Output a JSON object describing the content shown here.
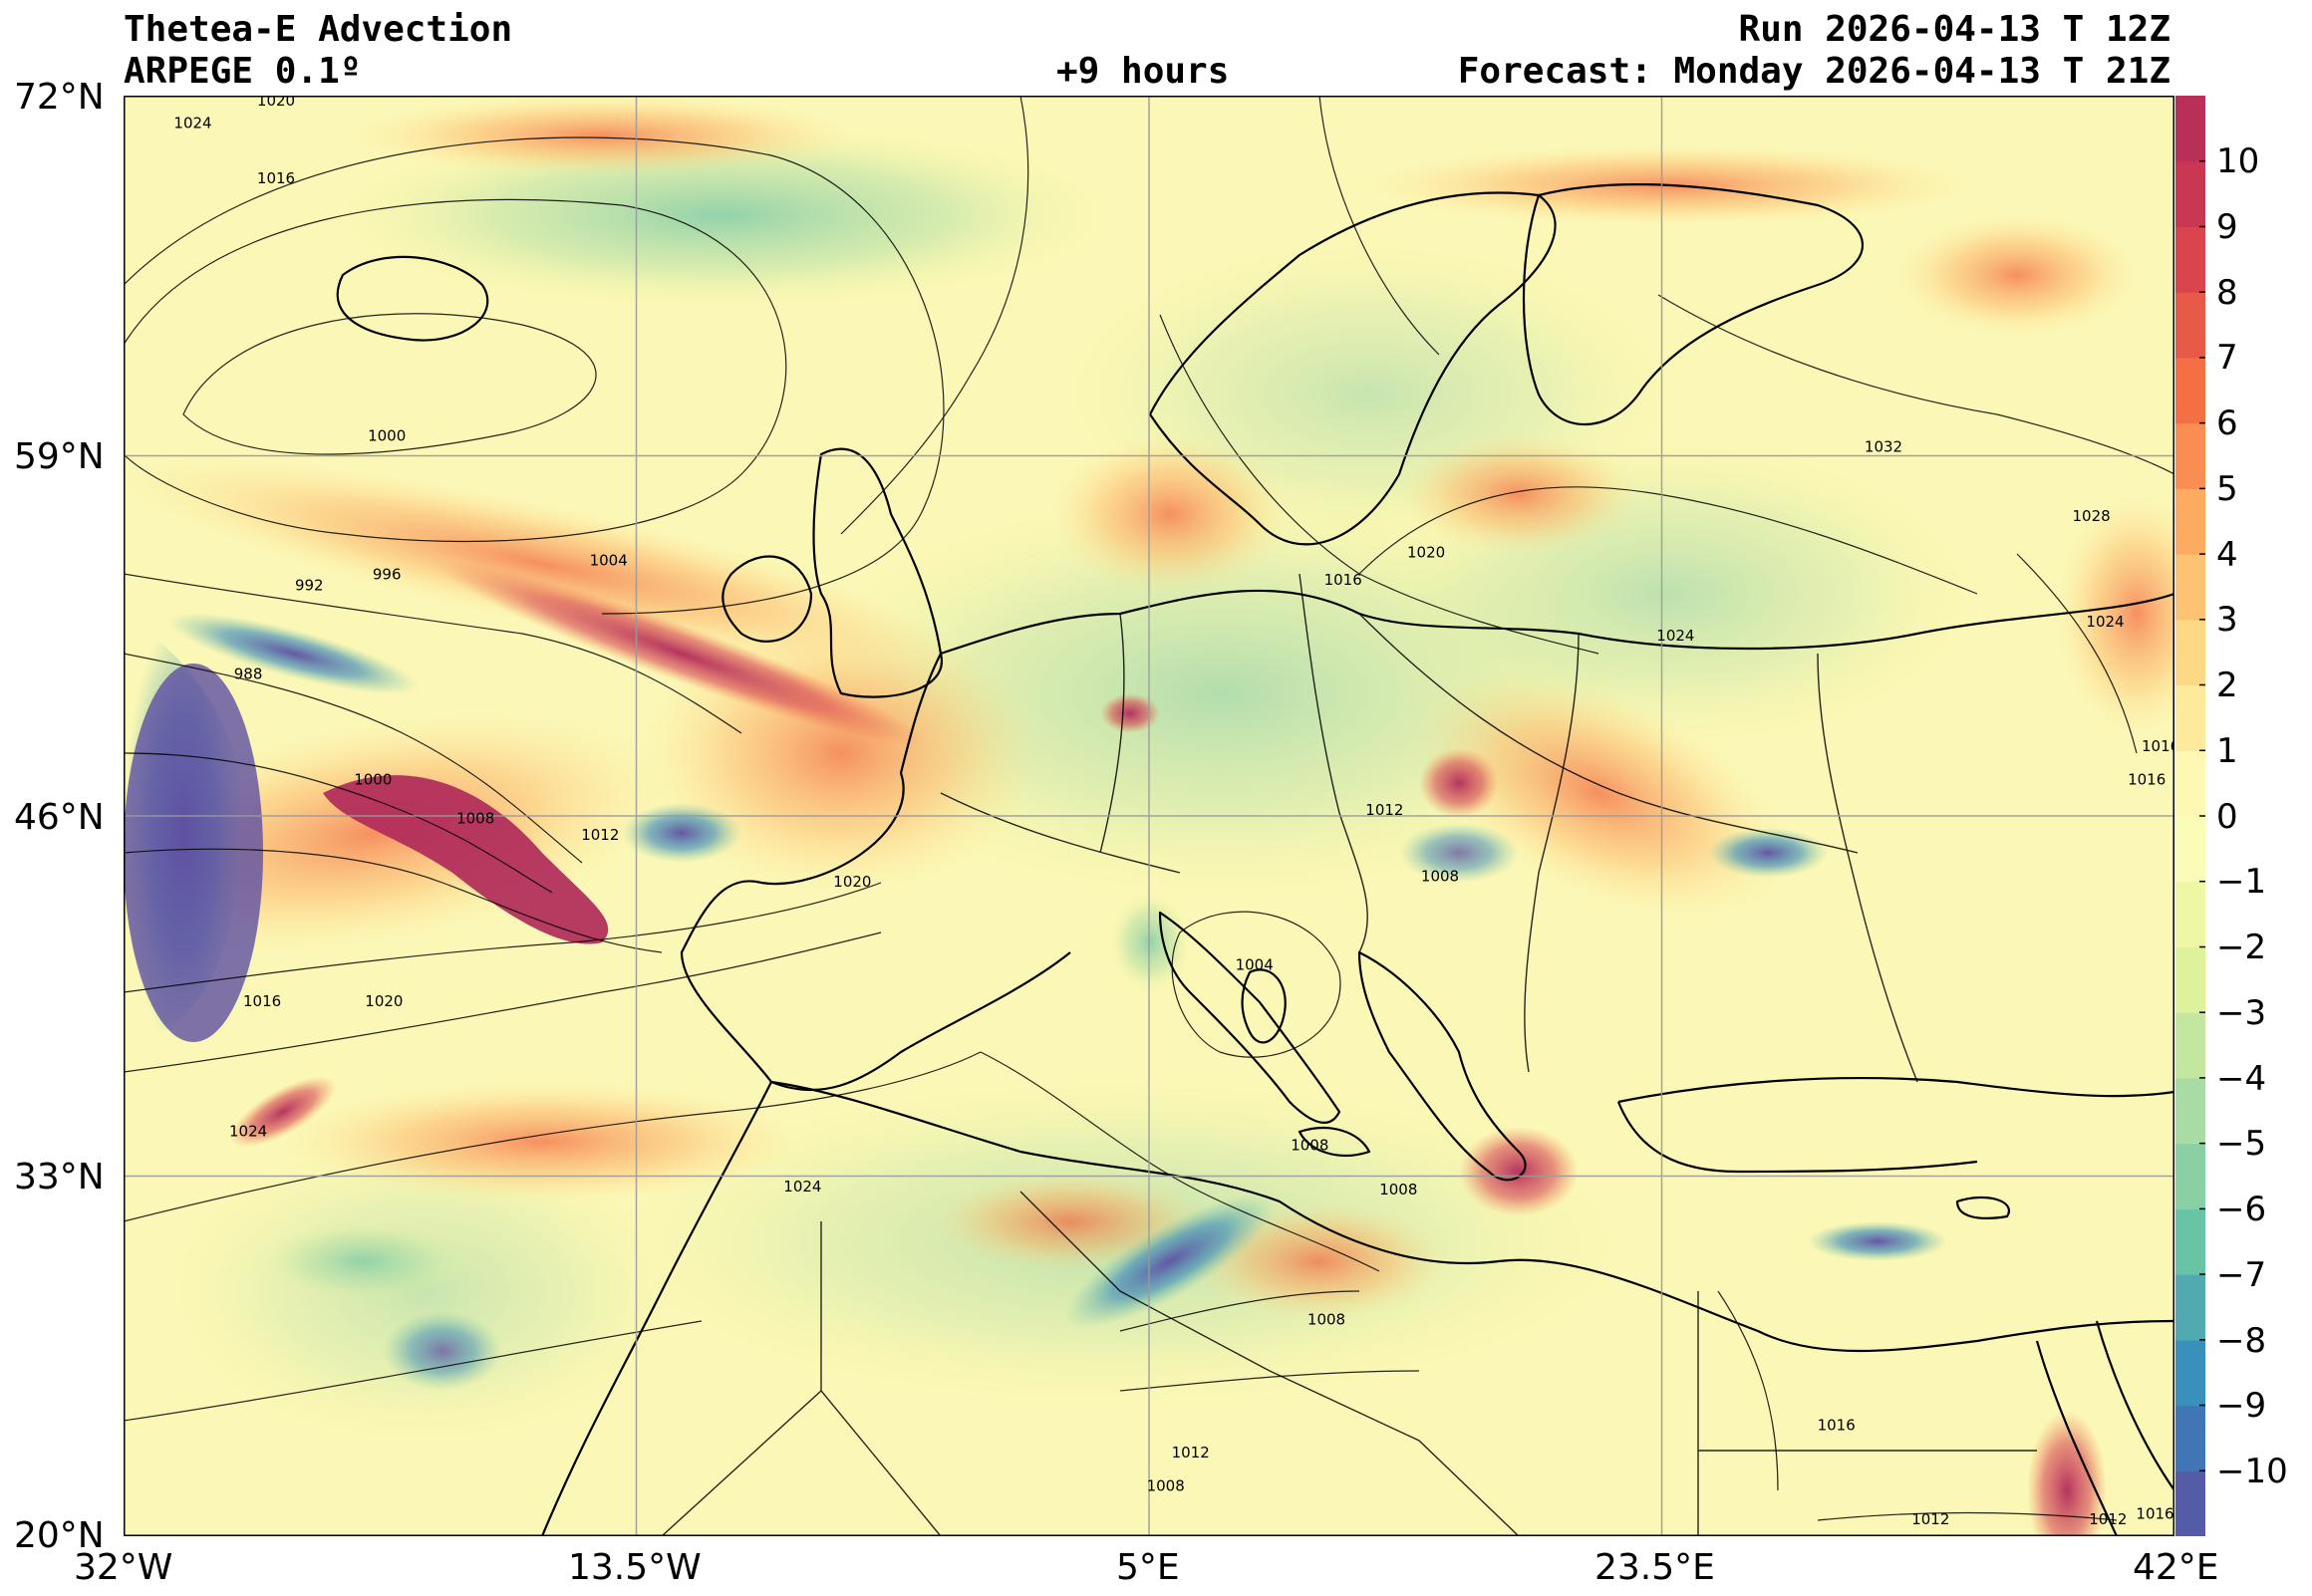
{
  "header": {
    "title": "Thetea-E Advection",
    "model": "ARPEGE 0.1º",
    "lead": "+9 hours",
    "run": "Run 2026-04-13 T 12Z",
    "forecast": "Forecast: Monday 2026-04-13 T 21Z"
  },
  "map": {
    "lon_range": [
      -32,
      42
    ],
    "lat_range": [
      20,
      72
    ],
    "lat_labels": [
      "72°N",
      "59°N",
      "46°N",
      "33°N",
      "20°N"
    ],
    "lon_labels": [
      "32°W",
      "13.5°W",
      "5°E",
      "23.5°E",
      "42°E"
    ],
    "isobar_labels": [
      {
        "text": "1024",
        "lon": -29.5,
        "lat": 71.0
      },
      {
        "text": "1020",
        "lon": -26.5,
        "lat": 71.8
      },
      {
        "text": "1016",
        "lon": -26.5,
        "lat": 69.0
      },
      {
        "text": "1000",
        "lon": -22.5,
        "lat": 59.7
      },
      {
        "text": "1004",
        "lon": -14.5,
        "lat": 55.2
      },
      {
        "text": "996",
        "lon": -22.5,
        "lat": 54.7
      },
      {
        "text": "992",
        "lon": -25.3,
        "lat": 54.3
      },
      {
        "text": "988",
        "lon": -27.5,
        "lat": 51.1
      },
      {
        "text": "1000",
        "lon": -23.0,
        "lat": 47.3
      },
      {
        "text": "1008",
        "lon": -19.3,
        "lat": 45.9
      },
      {
        "text": "1012",
        "lon": -14.8,
        "lat": 45.3
      },
      {
        "text": "1020",
        "lon": -5.7,
        "lat": 43.6
      },
      {
        "text": "1016",
        "lon": -27.0,
        "lat": 39.3
      },
      {
        "text": "1020",
        "lon": -22.6,
        "lat": 39.3
      },
      {
        "text": "1024",
        "lon": -27.5,
        "lat": 34.6
      },
      {
        "text": "1024",
        "lon": -7.5,
        "lat": 32.6
      },
      {
        "text": "1008",
        "lon": 10.8,
        "lat": 34.1
      },
      {
        "text": "1008",
        "lon": 14.0,
        "lat": 32.5
      },
      {
        "text": "1008",
        "lon": 11.4,
        "lat": 27.8
      },
      {
        "text": "1012",
        "lon": 6.5,
        "lat": 23.0
      },
      {
        "text": "1008",
        "lon": 5.6,
        "lat": 21.8
      },
      {
        "text": "1004",
        "lon": 8.8,
        "lat": 40.6
      },
      {
        "text": "1008",
        "lon": 15.5,
        "lat": 43.8
      },
      {
        "text": "1012",
        "lon": 13.5,
        "lat": 46.2
      },
      {
        "text": "1016",
        "lon": 12.0,
        "lat": 54.5
      },
      {
        "text": "1020",
        "lon": 15.0,
        "lat": 55.5
      },
      {
        "text": "1024",
        "lon": 24.0,
        "lat": 52.5
      },
      {
        "text": "1032",
        "lon": 31.5,
        "lat": 59.3
      },
      {
        "text": "1028",
        "lon": 39.0,
        "lat": 56.8
      },
      {
        "text": "1024",
        "lon": 39.5,
        "lat": 53.0
      },
      {
        "text": "1016",
        "lon": 41.5,
        "lat": 48.5
      },
      {
        "text": "1016",
        "lon": 41.0,
        "lat": 47.3
      },
      {
        "text": "1016",
        "lon": 29.8,
        "lat": 24.0
      },
      {
        "text": "1012",
        "lon": 33.2,
        "lat": 20.6
      },
      {
        "text": "1012",
        "lon": 39.6,
        "lat": 20.6
      },
      {
        "text": "1016",
        "lon": 41.3,
        "lat": 20.8
      }
    ],
    "gridlines": true
  },
  "colorbar": {
    "ticks": [
      "10",
      "9",
      "8",
      "7",
      "6",
      "5",
      "4",
      "3",
      "2",
      "1",
      "0",
      "−1",
      "−2",
      "−3",
      "−4",
      "−5",
      "−6",
      "−7",
      "−8",
      "−9",
      "−10"
    ],
    "range": [
      -11,
      11
    ],
    "colors": [
      "#5e4fa2",
      "#3288bd",
      "#66c2a5",
      "#abdda4",
      "#e6f598",
      "#ffffbf",
      "#fee08b",
      "#fdae61",
      "#f46d43",
      "#d53e4f",
      "#b02a5a"
    ]
  }
}
